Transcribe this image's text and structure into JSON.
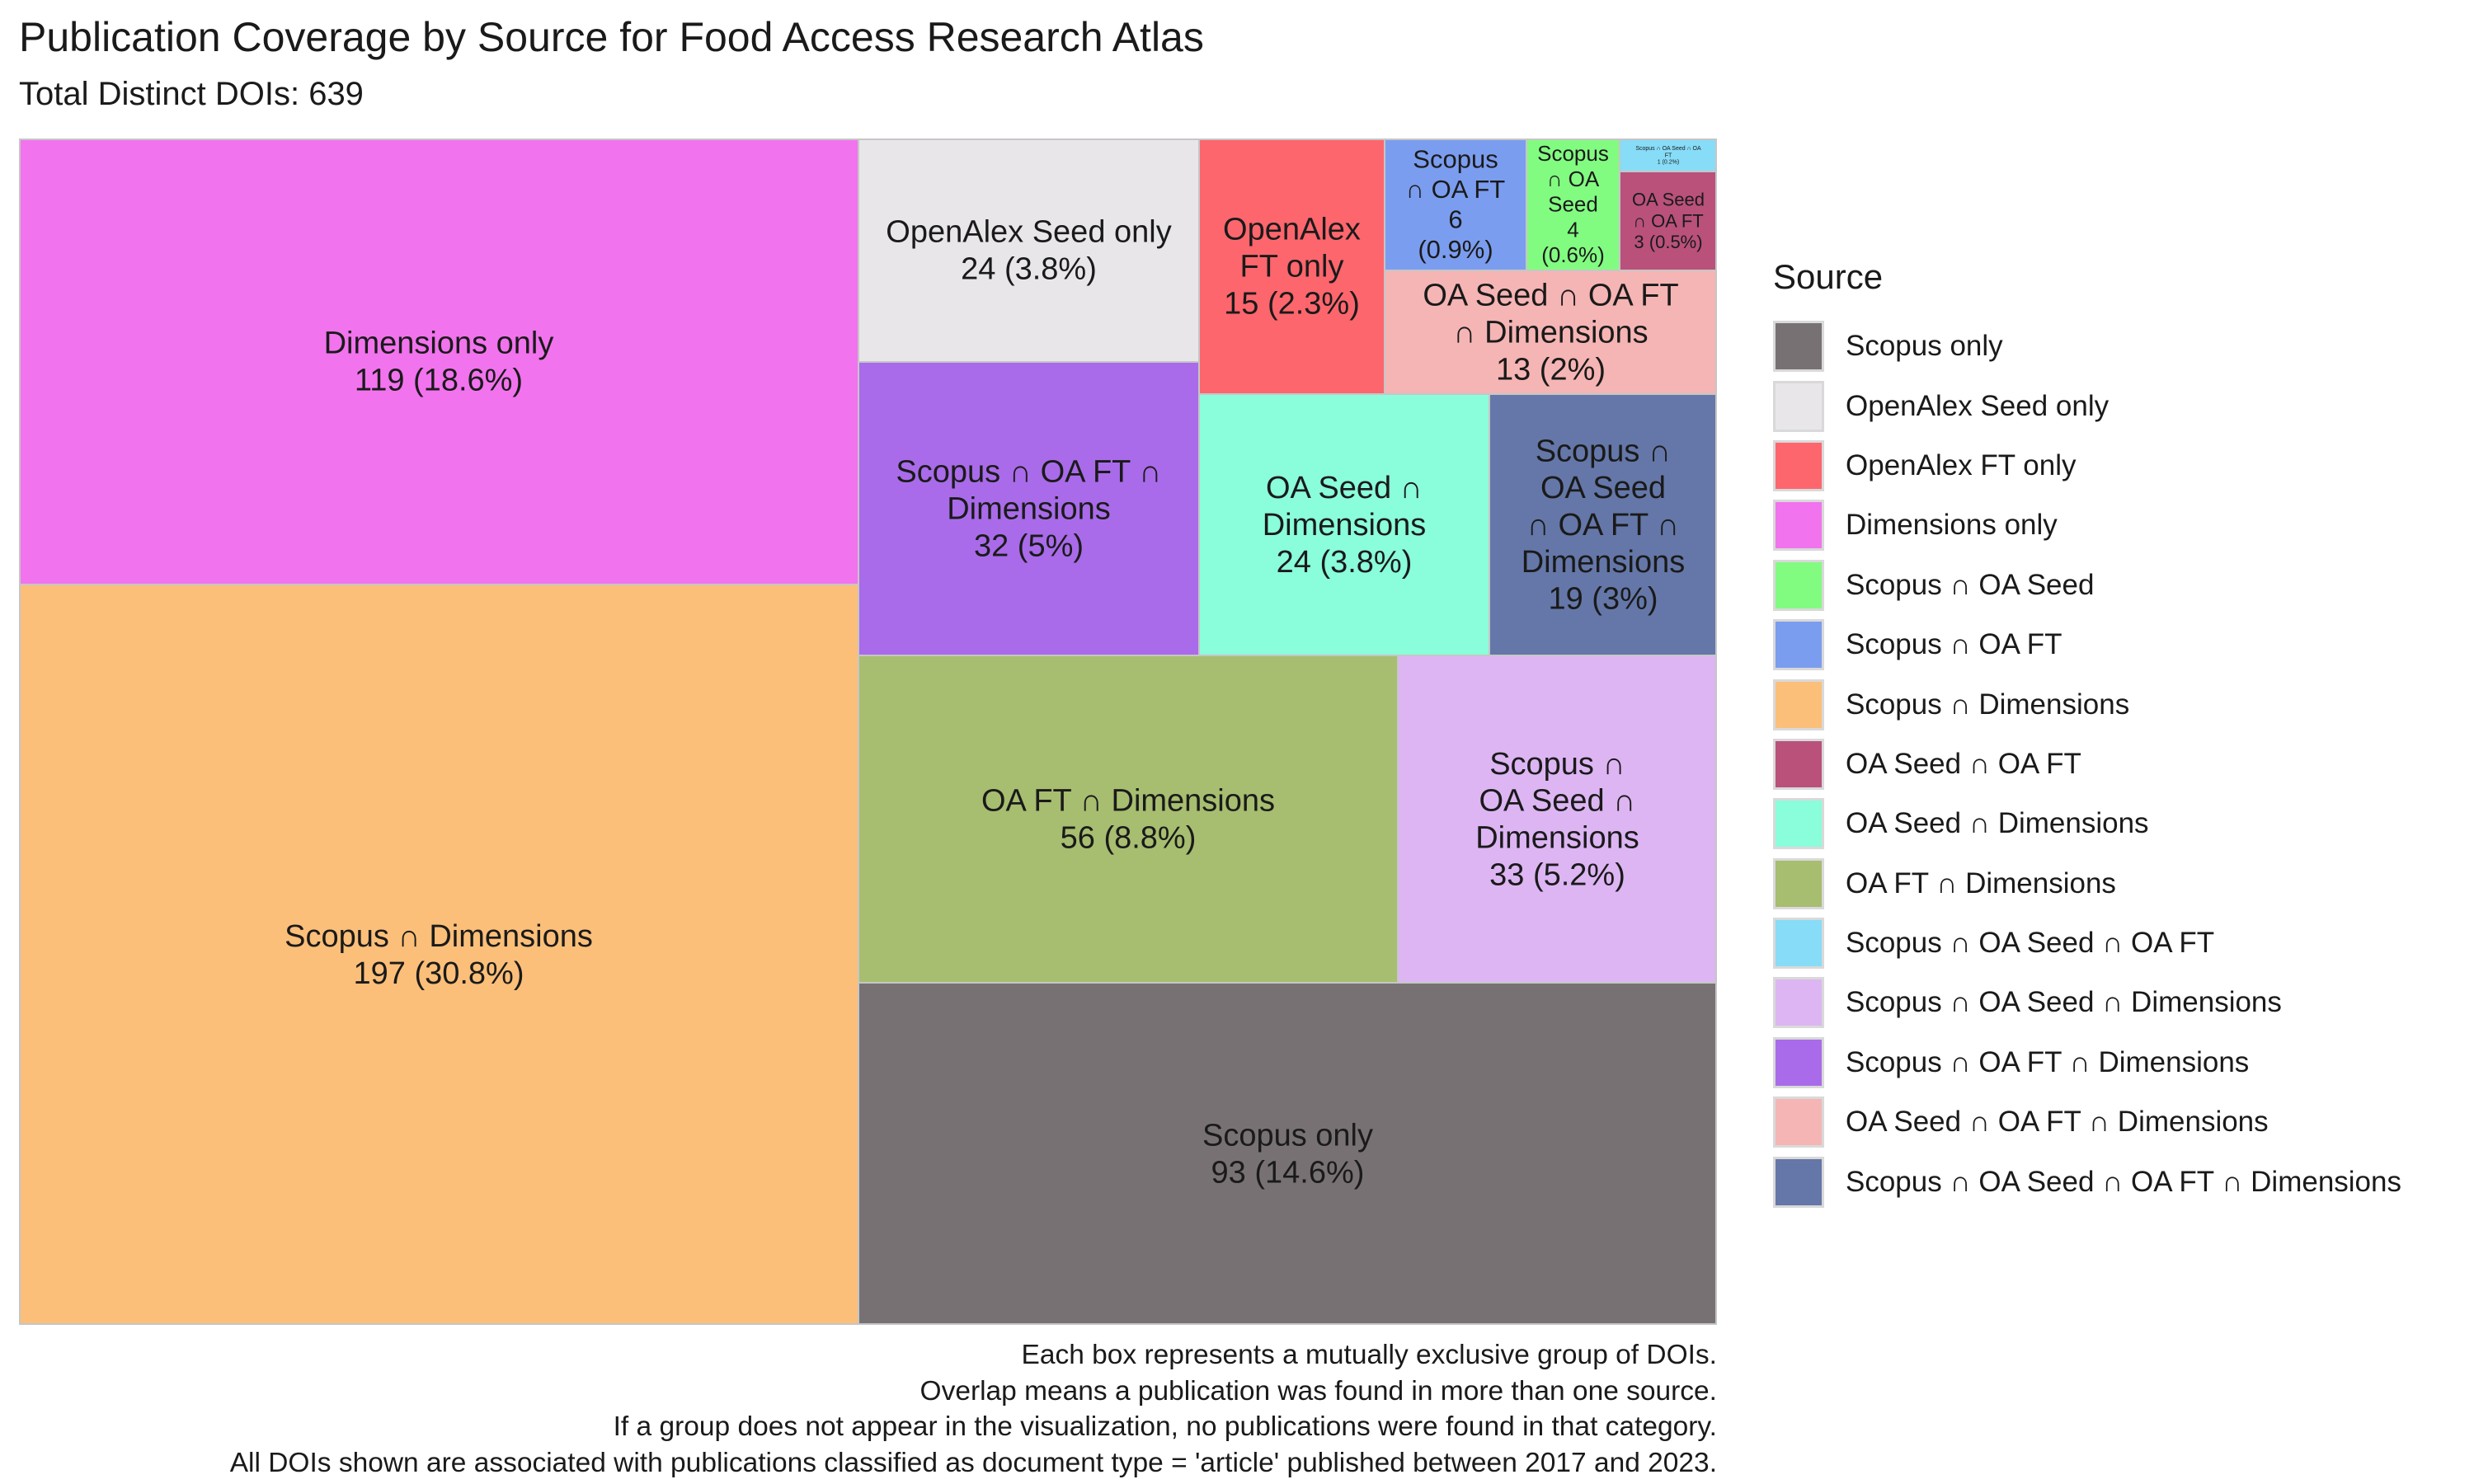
{
  "chart_data": {
    "type": "treemap",
    "title": "Publication Coverage by Source for Food Access Research Atlas",
    "subtitle": "Total Distinct DOIs: 639",
    "legend_title": "Source",
    "legend_position": "right",
    "categories": [
      {
        "name": "Scopus only",
        "color": "#787173",
        "value": 93,
        "label_lines": [
          "Scopus only",
          "93 (14.6%)"
        ]
      },
      {
        "name": "OpenAlex Seed only",
        "color": "#e8e6e9",
        "value": 24,
        "label_lines": [
          "OpenAlex Seed only",
          "24 (3.8%)"
        ]
      },
      {
        "name": "OpenAlex FT only",
        "color": "#fd666d",
        "value": 15,
        "label_lines": [
          "OpenAlex",
          "FT only",
          "15 (2.3%)"
        ]
      },
      {
        "name": "Dimensions only",
        "color": "#f273ee",
        "value": 119,
        "label_lines": [
          "Dimensions only",
          "119 (18.6%)"
        ]
      },
      {
        "name": "Scopus ∩ OA Seed",
        "color": "#82fb81",
        "value": 4,
        "label_lines": [
          "Scopus",
          "∩ OA",
          "Seed",
          "4",
          "(0.6%)"
        ]
      },
      {
        "name": "Scopus ∩ OA FT",
        "color": "#7b9def",
        "value": 6,
        "label_lines": [
          "Scopus",
          "∩ OA FT",
          "6",
          "(0.9%)"
        ]
      },
      {
        "name": "Scopus ∩ Dimensions",
        "color": "#fbbf79",
        "value": 197,
        "label_lines": [
          "Scopus ∩ Dimensions",
          "197 (30.8%)"
        ]
      },
      {
        "name": "OA Seed ∩ OA FT",
        "color": "#b9517b",
        "value": 3,
        "label_lines": [
          "OA Seed",
          "∩ OA FT",
          "3 (0.5%)"
        ]
      },
      {
        "name": "OA Seed ∩ Dimensions",
        "color": "#8afdda",
        "value": 24,
        "label_lines": [
          "OA Seed ∩",
          "Dimensions",
          "24 (3.8%)"
        ]
      },
      {
        "name": "OA FT ∩ Dimensions",
        "color": "#a7bd70",
        "value": 56,
        "label_lines": [
          "OA FT ∩ Dimensions",
          "56 (8.8%)"
        ]
      },
      {
        "name": "Scopus ∩ OA Seed ∩ OA FT",
        "color": "#87dcf7",
        "value": 1,
        "label_lines": [
          "Scopus ∩ OA Seed ∩ OA",
          "FT",
          "1 (0.2%)"
        ]
      },
      {
        "name": "Scopus ∩ OA Seed ∩ Dimensions",
        "color": "#ddb5f3",
        "value": 33,
        "label_lines": [
          "Scopus ∩",
          "OA Seed ∩",
          "Dimensions",
          "33 (5.2%)"
        ]
      },
      {
        "name": "Scopus ∩ OA FT ∩ Dimensions",
        "color": "#a96be9",
        "value": 32,
        "label_lines": [
          "Scopus ∩ OA FT ∩",
          "Dimensions",
          "32 (5%)"
        ]
      },
      {
        "name": "OA Seed ∩ OA FT ∩ Dimensions",
        "color": "#f5b5b4",
        "value": 13,
        "label_lines": [
          "OA Seed ∩ OA FT",
          "∩ Dimensions",
          "13 (2%)"
        ]
      },
      {
        "name": "Scopus ∩ OA Seed ∩ OA FT ∩ Dimensions",
        "color": "#6477a8",
        "value": 19,
        "label_lines": [
          "Scopus ∩",
          "OA Seed",
          "∩ OA FT ∩",
          "Dimensions",
          "19 (3%)"
        ]
      }
    ]
  },
  "caption": [
    "Each box represents a mutually exclusive group of DOIs.",
    "Overlap means a publication was found in more than one source.",
    "If a group does not appear in the visualization, no publications were found in that category.",
    "All DOIs shown are associated with publications classified as document type = 'article' published between 2017 and 2023."
  ]
}
